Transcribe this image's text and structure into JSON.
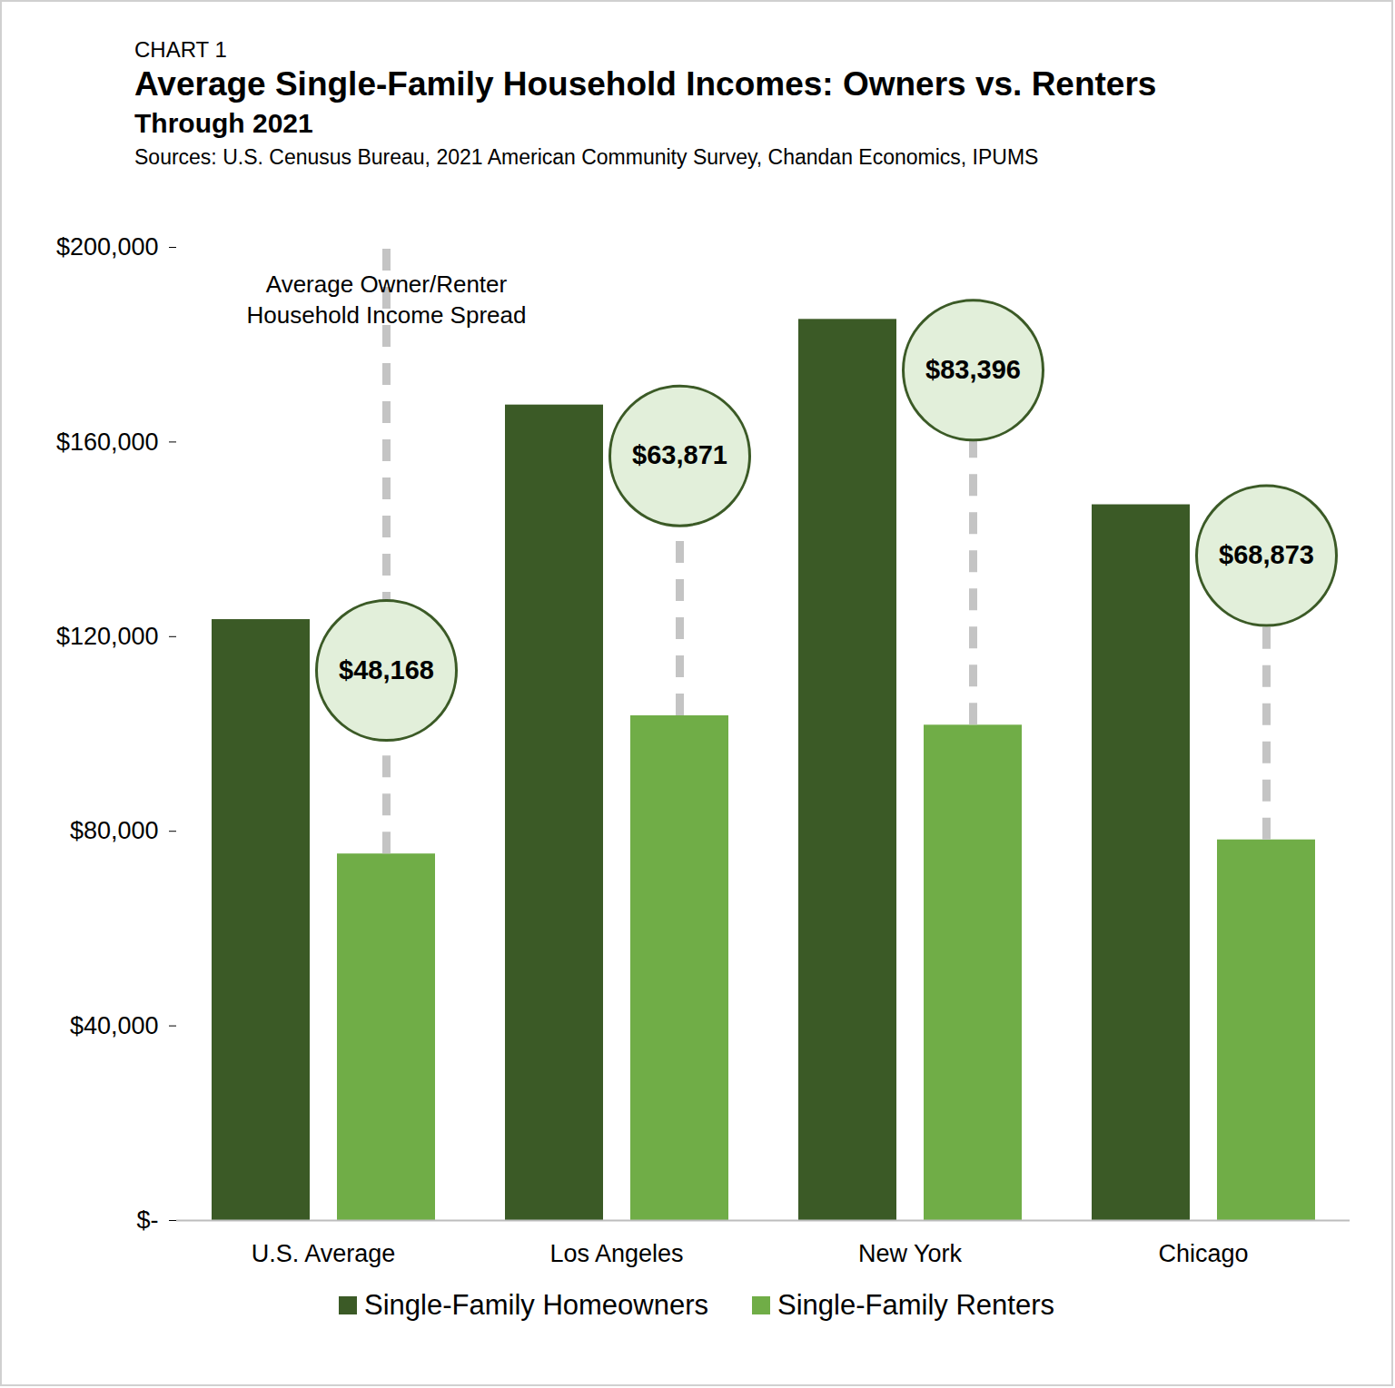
{
  "chart_data": {
    "type": "bar",
    "chart_label": "CHART 1",
    "title": "Average Single-Family Household Incomes: Owners vs. Renters",
    "subtitle": "Through 2021",
    "source": "Sources: U.S. Cenusus Bureau, 2021 American Community Survey, Chandan Economics, IPUMS",
    "categories": [
      "U.S. Average",
      "Los Angeles",
      "New York",
      "Chicago"
    ],
    "series": [
      {
        "name": "Single-Family Homeowners",
        "color": "#3b5a26",
        "values": [
          123500,
          167600,
          185200,
          147100
        ]
      },
      {
        "name": "Single-Family Renters",
        "color": "#70ad47",
        "values": [
          75332,
          103729,
          101804,
          78227
        ]
      }
    ],
    "ylim": [
      0,
      200000
    ],
    "yticks": [
      {
        "value": 0,
        "label": "$-"
      },
      {
        "value": 40000,
        "label": "$40,000"
      },
      {
        "value": 80000,
        "label": "$80,000"
      },
      {
        "value": 120000,
        "label": "$120,000"
      },
      {
        "value": 160000,
        "label": "$160,000"
      },
      {
        "value": 200000,
        "label": "$200,000"
      }
    ],
    "grid": false,
    "legend": "bottom",
    "annotations": {
      "label": "Average Owner/Renter\nHousehold Income Spread",
      "values": [
        48168,
        63871,
        83396,
        68873
      ],
      "value_labels": [
        "$48,168",
        "$63,871",
        "$83,396",
        "$68,873"
      ]
    }
  }
}
